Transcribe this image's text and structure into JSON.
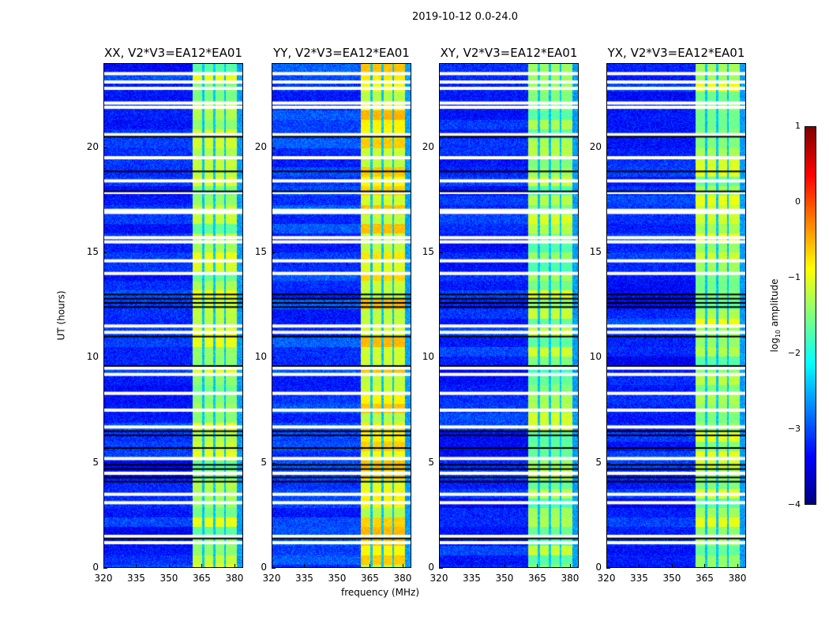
{
  "chart_data": {
    "type": "heatmap",
    "title": "2019-10-12 0.0-24.0",
    "xlabel": "frequency (MHz)",
    "ylabel": "UT (hours)",
    "xlim": [
      320,
      384
    ],
    "ylim": [
      0,
      24
    ],
    "xticks": [
      "320",
      "335",
      "350",
      "365",
      "380"
    ],
    "xtick_values": [
      320,
      335,
      350,
      365,
      380
    ],
    "yticks": [
      "0",
      "5",
      "10",
      "15",
      "20"
    ],
    "ytick_values": [
      0,
      5,
      10,
      15,
      20
    ],
    "panels": [
      {
        "title": "XX, V2*V3=EA12*EA01",
        "band_level": -1.3,
        "background_level": -3.2
      },
      {
        "title": "YY, V2*V3=EA12*EA01",
        "band_level": -0.9,
        "background_level": -3.1
      },
      {
        "title": "XY, V2*V3=EA12*EA01",
        "band_level": -1.4,
        "background_level": -3.2
      },
      {
        "title": "YX, V2*V3=EA12*EA01",
        "band_level": -1.3,
        "background_level": -3.2
      }
    ],
    "band_MHz": [
      360.5,
      381
    ],
    "band_gaps_MHz": [
      365.5,
      370.5,
      375.5
    ],
    "flagged_hours_white": [
      23.5,
      23.1,
      22.8,
      22.1,
      21.9,
      20.6,
      19.5,
      18.4,
      17.85,
      17.0,
      16.9,
      15.7,
      15.5,
      14.6,
      14.0,
      11.5,
      11.2,
      9.5,
      9.2,
      8.3,
      7.5,
      6.7,
      5.2,
      4.5,
      3.5,
      3.1,
      1.5,
      1.2
    ],
    "flagged_hours_black": [
      20.5,
      18.85,
      17.9,
      13.0,
      12.8,
      12.6,
      12.4,
      11.0,
      9.6,
      6.5,
      6.3,
      5.7,
      4.9,
      4.7,
      4.3,
      4.1,
      1.4
    ],
    "colorbar": {
      "label": "log₁₀ amplitude",
      "label_main": "log",
      "label_sub": "10",
      "label_rest": " amplitude",
      "range": [
        -4,
        1
      ],
      "ticks": [
        "1",
        "0",
        "−1",
        "−2",
        "−3",
        "−4"
      ],
      "tick_values": [
        1,
        0,
        -1,
        -2,
        -3,
        -4
      ],
      "colormap": "jet"
    }
  }
}
